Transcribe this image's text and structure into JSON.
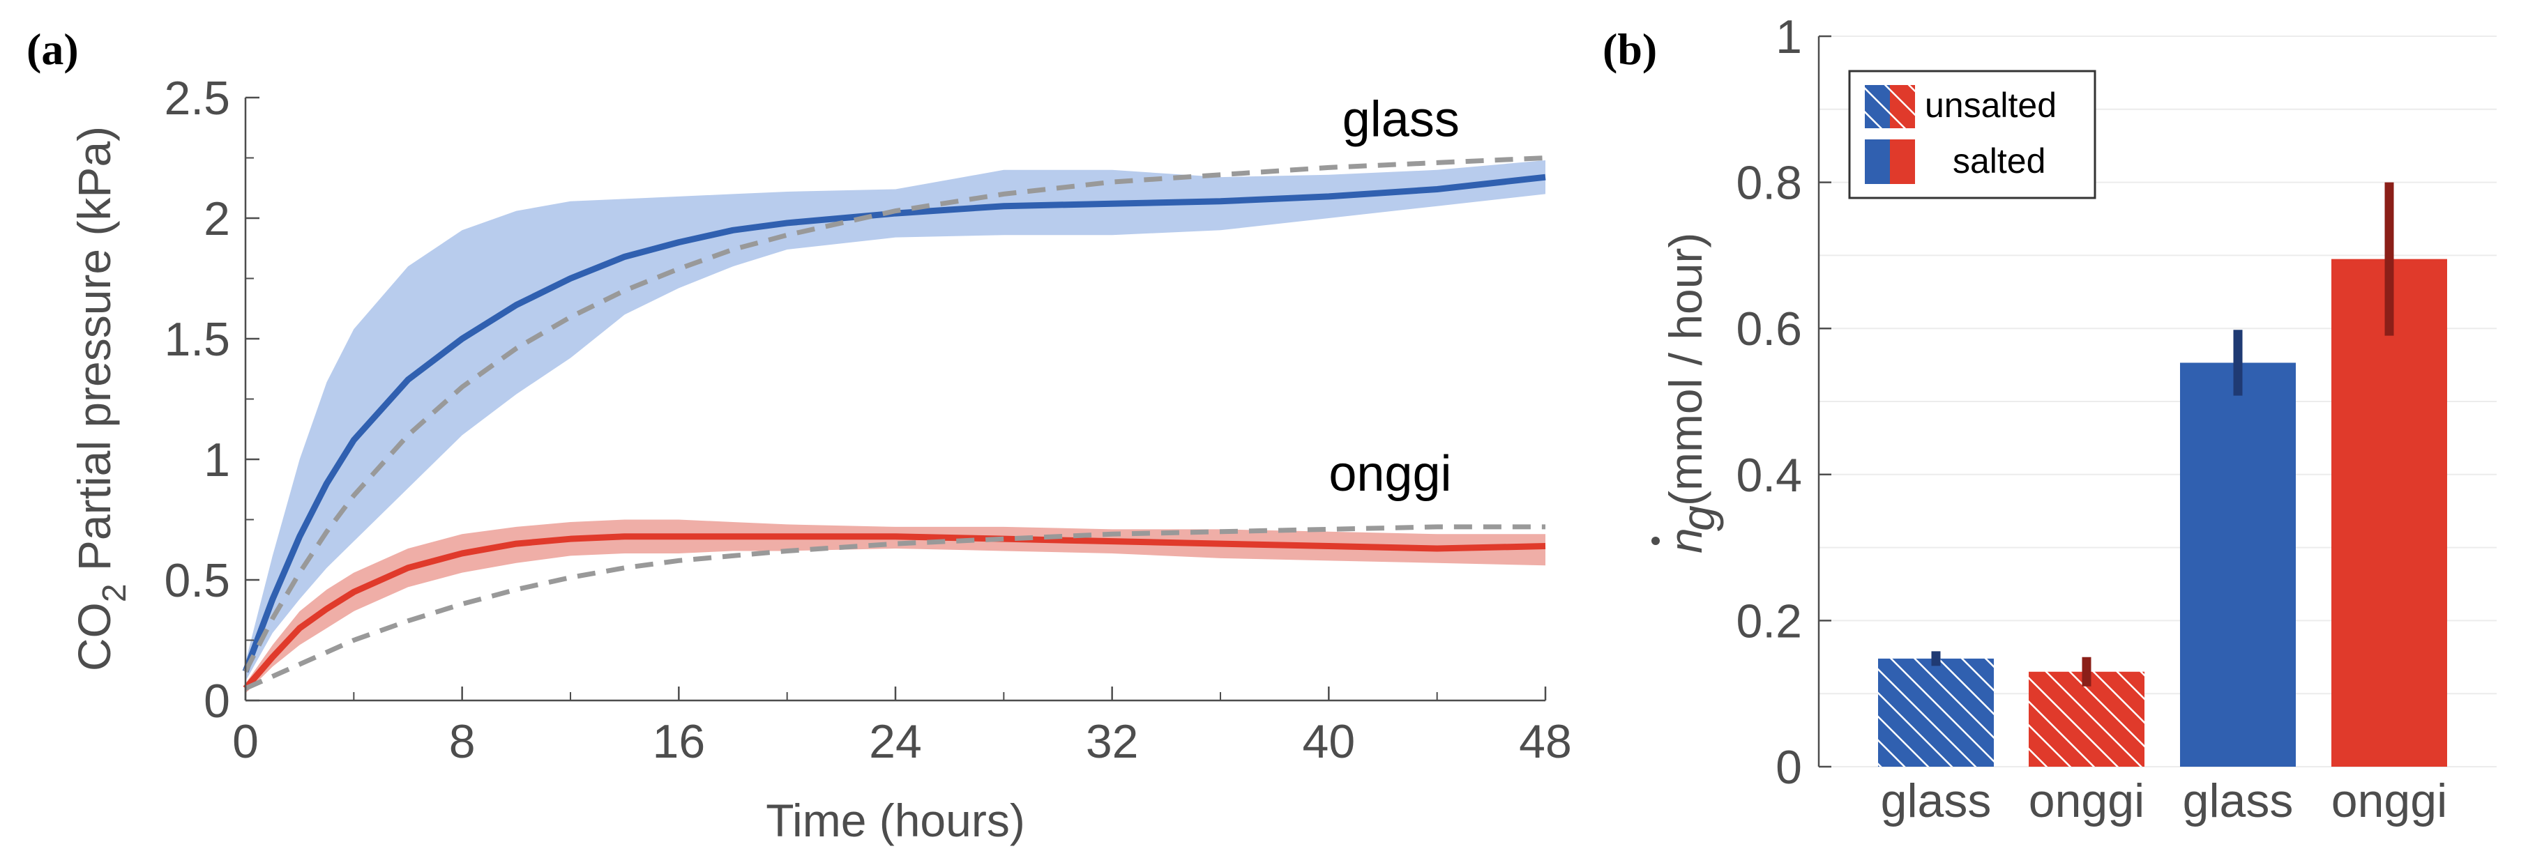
{
  "panels": {
    "a_label": "(a)",
    "b_label": "(b)"
  },
  "colors": {
    "glass": "#3060b0",
    "glass_band": "#b4c9ec",
    "onggi": "#e03a2b",
    "onggi_band": "#eeaaa2",
    "fit": "#999999",
    "err_glass": "#1f3a73",
    "err_onggi": "#8b1f18"
  },
  "chart_data": [
    {
      "type": "line",
      "xlabel": "Time (hours)",
      "ylabel": "CO2 Partial pressure (kPa)",
      "ylabel_parts": {
        "pre": "CO",
        "sub": "2",
        "post": " Partial pressure (kPa)"
      },
      "xlim": [
        0,
        48
      ],
      "ylim": [
        0,
        2.5
      ],
      "xticks": [
        0,
        8,
        16,
        24,
        32,
        40,
        48
      ],
      "yticks": [
        0,
        0.5,
        1,
        1.5,
        2,
        2.5
      ],
      "ytick_labels": [
        "0",
        "0.5",
        "1",
        "1.5",
        "2",
        "2.5"
      ],
      "x": [
        0,
        1,
        2,
        3,
        4,
        6,
        8,
        10,
        12,
        14,
        16,
        18,
        20,
        24,
        28,
        32,
        36,
        40,
        44,
        48
      ],
      "series": [
        {
          "name": "glass",
          "mean": [
            0.12,
            0.42,
            0.68,
            0.9,
            1.08,
            1.33,
            1.5,
            1.64,
            1.75,
            1.84,
            1.9,
            1.95,
            1.98,
            2.02,
            2.05,
            2.06,
            2.07,
            2.09,
            2.12,
            2.17
          ],
          "upper": [
            0.16,
            0.6,
            1.0,
            1.32,
            1.54,
            1.8,
            1.95,
            2.03,
            2.07,
            2.08,
            2.09,
            2.1,
            2.11,
            2.12,
            2.2,
            2.2,
            2.17,
            2.18,
            2.2,
            2.24
          ],
          "lower": [
            0.08,
            0.28,
            0.42,
            0.55,
            0.66,
            0.88,
            1.1,
            1.27,
            1.42,
            1.6,
            1.71,
            1.8,
            1.87,
            1.92,
            1.93,
            1.93,
            1.95,
            2.0,
            2.05,
            2.1
          ],
          "fit": [
            0.12,
            0.34,
            0.53,
            0.7,
            0.85,
            1.1,
            1.3,
            1.46,
            1.59,
            1.7,
            1.79,
            1.87,
            1.93,
            2.03,
            2.1,
            2.15,
            2.18,
            2.21,
            2.23,
            2.25
          ]
        },
        {
          "name": "onggi",
          "mean": [
            0.05,
            0.18,
            0.3,
            0.38,
            0.45,
            0.55,
            0.61,
            0.65,
            0.67,
            0.68,
            0.68,
            0.68,
            0.68,
            0.68,
            0.67,
            0.66,
            0.65,
            0.64,
            0.63,
            0.64
          ],
          "upper": [
            0.07,
            0.23,
            0.37,
            0.46,
            0.53,
            0.63,
            0.69,
            0.72,
            0.74,
            0.75,
            0.75,
            0.74,
            0.73,
            0.72,
            0.72,
            0.71,
            0.71,
            0.7,
            0.69,
            0.69
          ],
          "lower": [
            0.03,
            0.14,
            0.23,
            0.3,
            0.37,
            0.47,
            0.53,
            0.57,
            0.6,
            0.61,
            0.61,
            0.62,
            0.62,
            0.63,
            0.62,
            0.61,
            0.59,
            0.58,
            0.57,
            0.56
          ],
          "fit": [
            0.05,
            0.1,
            0.15,
            0.2,
            0.25,
            0.33,
            0.4,
            0.46,
            0.51,
            0.55,
            0.58,
            0.6,
            0.62,
            0.65,
            0.67,
            0.69,
            0.7,
            0.71,
            0.72,
            0.72
          ]
        }
      ],
      "annotations": [
        {
          "text": "glass",
          "x": 40.5,
          "y": 2.34
        },
        {
          "text": "onggi",
          "x": 40,
          "y": 0.87
        }
      ]
    },
    {
      "type": "bar",
      "ylabel": "(mmol / hour)",
      "ylabel_symbol": "n",
      "ylabel_sub": "g",
      "ylim": [
        0,
        1
      ],
      "yticks": [
        0,
        0.2,
        0.4,
        0.6,
        0.8,
        1
      ],
      "ytick_labels": [
        "0",
        "0.2",
        "0.4",
        "0.6",
        "0.8",
        "1"
      ],
      "categories": [
        "glass",
        "onggi",
        "glass",
        "onggi"
      ],
      "values": [
        0.148,
        0.13,
        0.553,
        0.695
      ],
      "errors": [
        0.01,
        0.02,
        0.045,
        0.105
      ],
      "hatched": [
        true,
        true,
        false,
        false
      ],
      "material": [
        "glass",
        "onggi",
        "glass",
        "onggi"
      ],
      "legend": {
        "position": "top-left",
        "entries": [
          "unsalted",
          "salted"
        ]
      }
    }
  ]
}
